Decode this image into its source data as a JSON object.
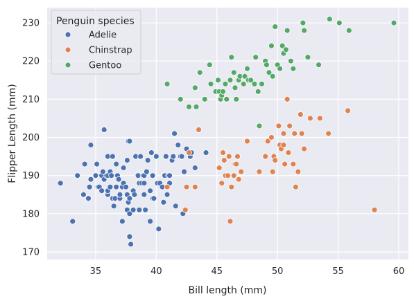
{
  "chart_data": {
    "type": "scatter",
    "title": "",
    "xlabel": "Bill length (mm)",
    "ylabel": "Flipper Length (mm)",
    "xlim": [
      31.0,
      60.8
    ],
    "ylim": [
      168.0,
      234.0
    ],
    "xticks": [
      35,
      40,
      45,
      50,
      55,
      60
    ],
    "yticks": [
      170,
      180,
      190,
      200,
      210,
      220,
      230
    ],
    "grid": true,
    "background": "#eaeaf2",
    "legend": {
      "title": "Penguin species",
      "position": "top-left"
    },
    "series": [
      {
        "name": "Adelie",
        "color": "#4c72b0",
        "points": [
          [
            32.1,
            188
          ],
          [
            33.1,
            178
          ],
          [
            33.5,
            190
          ],
          [
            34.0,
            185
          ],
          [
            34.1,
            193
          ],
          [
            34.4,
            184
          ],
          [
            34.5,
            187
          ],
          [
            34.6,
            189
          ],
          [
            34.6,
            198
          ],
          [
            35.0,
            190
          ],
          [
            35.1,
            193
          ],
          [
            35.2,
            187
          ],
          [
            35.3,
            187
          ],
          [
            35.5,
            186
          ],
          [
            35.5,
            190
          ],
          [
            35.6,
            191
          ],
          [
            35.7,
            189
          ],
          [
            35.7,
            202
          ],
          [
            35.9,
            190
          ],
          [
            36.0,
            185
          ],
          [
            36.0,
            186
          ],
          [
            36.0,
            190
          ],
          [
            36.0,
            195
          ],
          [
            36.2,
            187
          ],
          [
            36.2,
            191
          ],
          [
            36.3,
            190
          ],
          [
            36.4,
            184
          ],
          [
            36.4,
            195
          ],
          [
            36.5,
            182
          ],
          [
            36.6,
            184
          ],
          [
            36.7,
            187
          ],
          [
            36.7,
            193
          ],
          [
            36.8,
            190
          ],
          [
            36.9,
            189
          ],
          [
            37.0,
            184
          ],
          [
            37.0,
            185
          ],
          [
            37.2,
            178
          ],
          [
            37.2,
            187
          ],
          [
            37.3,
            188
          ],
          [
            37.3,
            192
          ],
          [
            37.5,
            187
          ],
          [
            37.6,
            181
          ],
          [
            37.6,
            185
          ],
          [
            37.6,
            194
          ],
          [
            37.7,
            183
          ],
          [
            37.7,
            199
          ],
          [
            37.8,
            174
          ],
          [
            37.8,
            180
          ],
          [
            37.8,
            184
          ],
          [
            37.8,
            199
          ],
          [
            37.9,
            172
          ],
          [
            38.1,
            181
          ],
          [
            38.1,
            186
          ],
          [
            38.2,
            185
          ],
          [
            38.3,
            195
          ],
          [
            38.5,
            190
          ],
          [
            38.6,
            181
          ],
          [
            38.6,
            188
          ],
          [
            38.7,
            195
          ],
          [
            38.8,
            188
          ],
          [
            38.9,
            190
          ],
          [
            39.0,
            185
          ],
          [
            39.0,
            188
          ],
          [
            39.0,
            190
          ],
          [
            39.1,
            181
          ],
          [
            39.2,
            191
          ],
          [
            39.3,
            194
          ],
          [
            39.5,
            178
          ],
          [
            39.5,
            186
          ],
          [
            39.6,
            196
          ],
          [
            39.7,
            184
          ],
          [
            39.7,
            190
          ],
          [
            39.8,
            184
          ],
          [
            40.0,
            195
          ],
          [
            40.1,
            188
          ],
          [
            40.2,
            176
          ],
          [
            40.3,
            188
          ],
          [
            40.5,
            187
          ],
          [
            40.6,
            183
          ],
          [
            40.7,
            190
          ],
          [
            40.8,
            195
          ],
          [
            40.9,
            185
          ],
          [
            40.9,
            187
          ],
          [
            41.0,
            190
          ],
          [
            41.1,
            188
          ],
          [
            41.1,
            190
          ],
          [
            41.3,
            194
          ],
          [
            41.4,
            195
          ],
          [
            41.5,
            201
          ],
          [
            41.6,
            182
          ],
          [
            41.8,
            198
          ],
          [
            42.0,
            195
          ],
          [
            42.1,
            195
          ],
          [
            42.2,
            180
          ],
          [
            42.3,
            191
          ],
          [
            42.5,
            197
          ],
          [
            42.8,
            195
          ],
          [
            42.9,
            196
          ],
          [
            43.2,
            192
          ],
          [
            44.1,
            196
          ]
        ]
      },
      {
        "name": "Chinstrap",
        "color": "#dd8452",
        "points": [
          [
            40.9,
            187
          ],
          [
            42.4,
            181
          ],
          [
            42.5,
            187
          ],
          [
            42.7,
            196
          ],
          [
            43.2,
            187
          ],
          [
            43.5,
            202
          ],
          [
            45.2,
            192
          ],
          [
            45.4,
            188
          ],
          [
            45.5,
            196
          ],
          [
            45.6,
            194
          ],
          [
            45.7,
            190
          ],
          [
            45.9,
            190
          ],
          [
            46.0,
            195
          ],
          [
            46.1,
            178
          ],
          [
            46.2,
            187
          ],
          [
            46.4,
            190
          ],
          [
            46.5,
            193
          ],
          [
            46.6,
            193
          ],
          [
            46.7,
            195
          ],
          [
            46.8,
            189
          ],
          [
            47.0,
            191
          ],
          [
            47.5,
            199
          ],
          [
            48.5,
            191
          ],
          [
            49.0,
            195
          ],
          [
            49.2,
            199
          ],
          [
            49.5,
            200
          ],
          [
            49.6,
            191
          ],
          [
            49.7,
            195
          ],
          [
            49.8,
            194
          ],
          [
            50.1,
            203
          ],
          [
            50.2,
            198
          ],
          [
            50.3,
            197
          ],
          [
            50.5,
            198
          ],
          [
            50.5,
            201
          ],
          [
            50.6,
            193
          ],
          [
            50.8,
            210
          ],
          [
            50.9,
            196
          ],
          [
            51.0,
            203
          ],
          [
            51.3,
            193
          ],
          [
            51.4,
            201
          ],
          [
            51.5,
            187
          ],
          [
            51.7,
            191
          ],
          [
            51.9,
            206
          ],
          [
            52.0,
            201
          ],
          [
            52.2,
            197
          ],
          [
            52.7,
            205
          ],
          [
            53.5,
            205
          ],
          [
            54.2,
            201
          ],
          [
            55.8,
            207
          ],
          [
            58.0,
            181
          ]
        ]
      },
      {
        "name": "Gentoo",
        "color": "#55a868",
        "points": [
          [
            40.9,
            214
          ],
          [
            42.0,
            210
          ],
          [
            42.7,
            208
          ],
          [
            43.2,
            213
          ],
          [
            43.3,
            208
          ],
          [
            43.6,
            217
          ],
          [
            44.0,
            210
          ],
          [
            44.4,
            219
          ],
          [
            44.5,
            214
          ],
          [
            44.9,
            212
          ],
          [
            45.1,
            215
          ],
          [
            45.2,
            212
          ],
          [
            45.3,
            210
          ],
          [
            45.4,
            211
          ],
          [
            45.5,
            212
          ],
          [
            45.7,
            214
          ],
          [
            45.8,
            210
          ],
          [
            46.1,
            215
          ],
          [
            46.2,
            221
          ],
          [
            46.4,
            217
          ],
          [
            46.5,
            213
          ],
          [
            46.6,
            210
          ],
          [
            46.8,
            215
          ],
          [
            46.9,
            216
          ],
          [
            47.2,
            214
          ],
          [
            47.3,
            216
          ],
          [
            47.5,
            218
          ],
          [
            47.6,
            215
          ],
          [
            47.8,
            215
          ],
          [
            48.1,
            214
          ],
          [
            48.2,
            221
          ],
          [
            48.4,
            212
          ],
          [
            48.5,
            203
          ],
          [
            48.7,
            214
          ],
          [
            49.0,
            220
          ],
          [
            49.1,
            219
          ],
          [
            49.3,
            217
          ],
          [
            49.5,
            224
          ],
          [
            49.6,
            216
          ],
          [
            49.8,
            229
          ],
          [
            50.0,
            219
          ],
          [
            50.2,
            218
          ],
          [
            50.4,
            224
          ],
          [
            50.5,
            222
          ],
          [
            50.7,
            223
          ],
          [
            50.8,
            228
          ],
          [
            51.1,
            220
          ],
          [
            51.3,
            218
          ],
          [
            52.1,
            230
          ],
          [
            52.2,
            228
          ],
          [
            52.5,
            221
          ],
          [
            53.4,
            219
          ],
          [
            54.3,
            231
          ],
          [
            55.1,
            230
          ],
          [
            55.9,
            228
          ],
          [
            59.6,
            230
          ]
        ]
      }
    ]
  }
}
